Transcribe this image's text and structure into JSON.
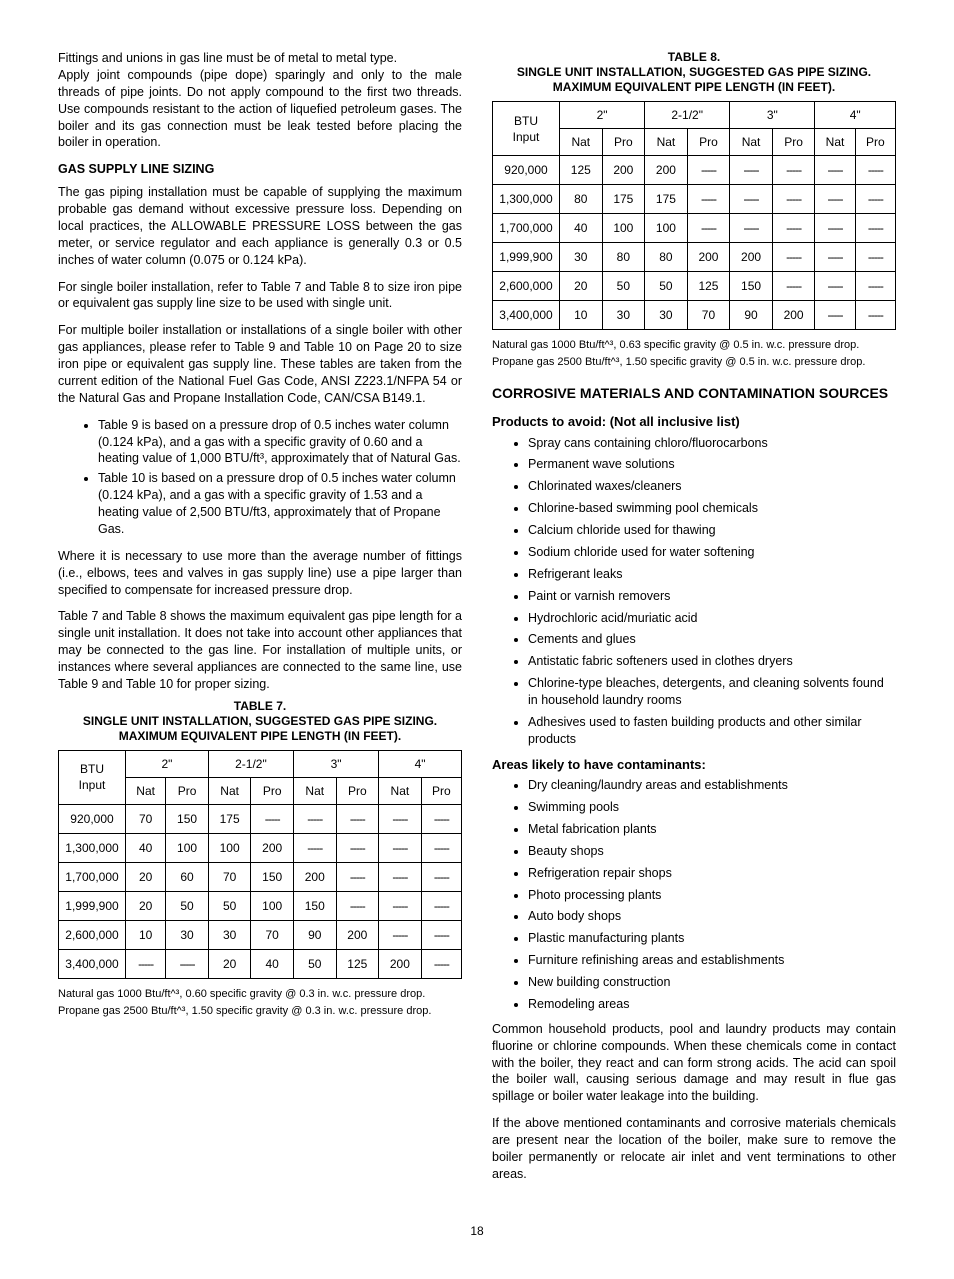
{
  "left": {
    "intro1": "Fittings and unions in gas line must be of metal to metal type.",
    "intro2": "Apply joint compounds (pipe dope) sparingly and only to the male threads of pipe joints. Do not apply compound to the first two threads. Use compounds resistant to the action of liquefied petroleum gases. The boiler and its gas connection must be leak tested before placing the boiler in operation.",
    "gas_head": "GAS SUPPLY LINE SIZING",
    "p1": "The gas piping installation must be capable of supplying the maximum probable gas demand without excessive pressure loss. Depending on local practices, the ALLOWABLE PRESSURE LOSS between the gas meter, or service regulator and each appliance is generally 0.3 or 0.5 inches of water column (0.075 or 0.124 kPa).",
    "p2": "For single boiler installation, refer to Table 7 and Table 8 to size iron pipe or equivalent gas supply line size to be used with single unit.",
    "p3": "For multiple boiler installation or installations of a single boiler with other gas appliances, please refer to Table 9 and Table 10 on Page 20 to size iron pipe or equivalent gas supply line. These tables are taken from the current edition of the National Fuel Gas Code, ANSI Z223.1/NFPA 54 or the Natural Gas and Propane Installation Code, CAN/CSA B149.1.",
    "b1": "Table 9 is based on a pressure drop of 0.5 inches water column (0.124 kPa), and a gas with a specific gravity of 0.60 and a heating value of 1,000 BTU/ft³, approximately that of Natural Gas.",
    "b2": "Table 10 is based on a pressure drop of 0.5 inches water column (0.124 kPa), and a gas with a specific gravity of 1.53 and a heating value of 2,500 BTU/ft3, approximately that of Propane Gas.",
    "p4": "Where it is necessary to use more than the average number of fittings (i.e., elbows, tees and valves in gas supply line) use a pipe larger than specified to compensate for increased pressure drop.",
    "p5": "Table 7 and Table 8 shows the maximum equivalent gas pipe length for a single unit installation. It does not take into account other appliances that may be connected to the gas line. For installation of multiple units, or instances where several appliances are connected to the same line, use Table 9 and Table 10 for proper sizing."
  },
  "table_shared": {
    "btu_header1": "BTU",
    "btu_header2": "Input",
    "sizes": [
      "2\"",
      "2-1/2\"",
      "3\"",
      "4\""
    ],
    "nat": "Nat",
    "pro": "Pro",
    "dash": "-----"
  },
  "table7": {
    "caption": "TABLE 7.\nSINGLE UNIT INSTALLATION, SUGGESTED GAS PIPE SIZING. MAXIMUM EQUIVALENT PIPE LENGTH (IN FEET).",
    "rows": [
      {
        "btu": "920,000",
        "v": [
          "70",
          "150",
          "175",
          "-----",
          "-----",
          "-----",
          "-----",
          "-----"
        ]
      },
      {
        "btu": "1,300,000",
        "v": [
          "40",
          "100",
          "100",
          "200",
          "-----",
          "-----",
          "-----",
          "-----"
        ]
      },
      {
        "btu": "1,700,000",
        "v": [
          "20",
          "60",
          "70",
          "150",
          "200",
          "-----",
          "-----",
          "-----"
        ]
      },
      {
        "btu": "1,999,900",
        "v": [
          "20",
          "50",
          "50",
          "100",
          "150",
          "-----",
          "-----",
          "-----"
        ]
      },
      {
        "btu": "2,600,000",
        "v": [
          "10",
          "30",
          "30",
          "70",
          "90",
          "200",
          "-----",
          "-----"
        ]
      },
      {
        "btu": "3,400,000",
        "v": [
          "-----",
          "-----",
          "20",
          "40",
          "50",
          "125",
          "200",
          "-----"
        ]
      }
    ],
    "note1": "Natural gas 1000 Btu/ft^³, 0.60 specific gravity @ 0.3 in. w.c. pressure drop.",
    "note2": "Propane gas 2500 Btu/ft^³, 1.50 specific gravity @ 0.3 in. w.c. pressure drop."
  },
  "table8": {
    "caption": "TABLE 8.\nSINGLE UNIT INSTALLATION, SUGGESTED GAS PIPE SIZING. MAXIMUM EQUIVALENT PIPE LENGTH (IN FEET).",
    "rows": [
      {
        "btu": "920,000",
        "v": [
          "125",
          "200",
          "200",
          "-----",
          "-----",
          "-----",
          "-----",
          "-----"
        ]
      },
      {
        "btu": "1,300,000",
        "v": [
          "80",
          "175",
          "175",
          "-----",
          "-----",
          "-----",
          "-----",
          "-----"
        ]
      },
      {
        "btu": "1,700,000",
        "v": [
          "40",
          "100",
          "100",
          "-----",
          "-----",
          "-----",
          "-----",
          "-----"
        ]
      },
      {
        "btu": "1,999,900",
        "v": [
          "30",
          "80",
          "80",
          "200",
          "200",
          "-----",
          "-----",
          "-----"
        ]
      },
      {
        "btu": "2,600,000",
        "v": [
          "20",
          "50",
          "50",
          "125",
          "150",
          "-----",
          "-----",
          "-----"
        ]
      },
      {
        "btu": "3,400,000",
        "v": [
          "10",
          "30",
          "30",
          "70",
          "90",
          "200",
          "-----",
          "-----"
        ]
      }
    ],
    "note1": "Natural gas 1000 Btu/ft^³, 0.63 specific gravity @ 0.5 in. w.c. pressure drop.",
    "note2": "Propane gas 2500 Btu/ft^³, 1.50 specific gravity @ 0.5 in. w.c. pressure drop."
  },
  "right": {
    "head_corrosive": "CORROSIVE MATERIALS AND CONTAMINATION SOURCES",
    "avoid_head": "Products to avoid: (Not all inclusive list)",
    "avoid": [
      "Spray cans containing chloro/fluorocarbons",
      "Permanent wave solutions",
      "Chlorinated waxes/cleaners",
      "Chlorine-based swimming pool chemicals",
      "Calcium chloride used for thawing",
      "Sodium chloride used for water softening",
      "Refrigerant leaks",
      "Paint or varnish removers",
      "Hydrochloric acid/muriatic acid",
      "Cements and glues",
      "Antistatic fabric softeners used in clothes dryers",
      "Chlorine-type bleaches, detergents, and cleaning solvents found in household laundry rooms",
      "Adhesives used to fasten building products and other similar products"
    ],
    "areas_head": "Areas likely to have contaminants:",
    "areas": [
      "Dry cleaning/laundry areas and establishments",
      "Swimming pools",
      "Metal fabrication plants",
      "Beauty shops",
      "Refrigeration repair shops",
      "Photo processing plants",
      "Auto body shops",
      "Plastic manufacturing plants",
      "Furniture refinishing areas and establishments",
      "New building construction",
      "Remodeling areas"
    ],
    "p_end1": "Common household products, pool and laundry products may contain fluorine or chlorine compounds. When these chemicals come in contact with the boiler, they react and can form strong acids.  The acid can spoil the boiler wall, causing serious damage and may result in flue gas spillage or boiler water leakage into the building.",
    "p_end2": "If the above mentioned contaminants and corrosive materials chemicals are present near the location of the boiler, make sure to remove the boiler permanently or relocate air inlet and vent terminations to other areas."
  },
  "page_number": "18"
}
